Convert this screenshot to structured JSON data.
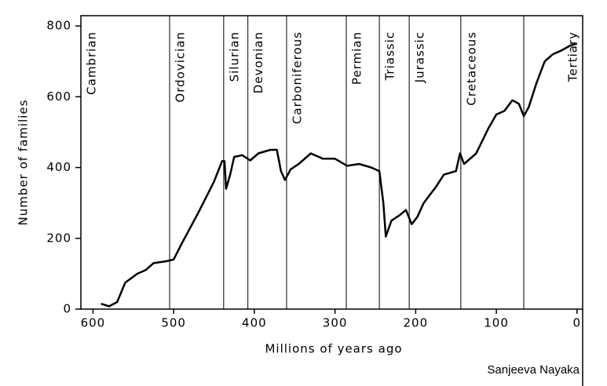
{
  "chart_data": {
    "type": "line",
    "x_label": "Millions of years ago",
    "y_label": "Number of families",
    "credit": "Sanjeeva Nayaka",
    "xlim": [
      615,
      -7
    ],
    "ylim": [
      0,
      829
    ],
    "xticks": [
      600,
      500,
      400,
      300,
      200,
      100,
      0
    ],
    "yticks": [
      0,
      200,
      400,
      600,
      800
    ],
    "periods": [
      "Cambrian",
      "Ordovician",
      "Silurian",
      "Devonian",
      "Carboniferous",
      "Permian",
      "Triassic",
      "Jurassic",
      "Cretaceous",
      "Tertiary"
    ],
    "boundaries": [
      505,
      438,
      408,
      360,
      286,
      245,
      208,
      144,
      66
    ],
    "x": [
      590,
      580,
      570,
      560,
      545,
      535,
      525,
      510,
      500,
      490,
      470,
      450,
      440,
      437,
      435,
      430,
      425,
      415,
      405,
      395,
      380,
      372,
      367,
      362,
      355,
      345,
      330,
      315,
      300,
      285,
      270,
      255,
      245,
      240,
      237,
      230,
      220,
      212,
      205,
      198,
      190,
      175,
      165,
      150,
      145,
      140,
      125,
      110,
      100,
      90,
      80,
      72,
      66,
      60,
      50,
      40,
      30,
      20,
      8,
      0
    ],
    "series": [
      {
        "color": "#000000",
        "values": [
          15,
          8,
          20,
          75,
          100,
          110,
          130,
          135,
          140,
          185,
          270,
          360,
          418,
          418,
          340,
          380,
          430,
          435,
          420,
          440,
          450,
          450,
          390,
          365,
          395,
          410,
          440,
          425,
          425,
          405,
          410,
          400,
          390,
          300,
          205,
          250,
          265,
          280,
          240,
          260,
          300,
          345,
          380,
          390,
          440,
          410,
          440,
          510,
          550,
          560,
          590,
          580,
          545,
          570,
          640,
          700,
          720,
          730,
          745,
          750
        ]
      }
    ]
  }
}
